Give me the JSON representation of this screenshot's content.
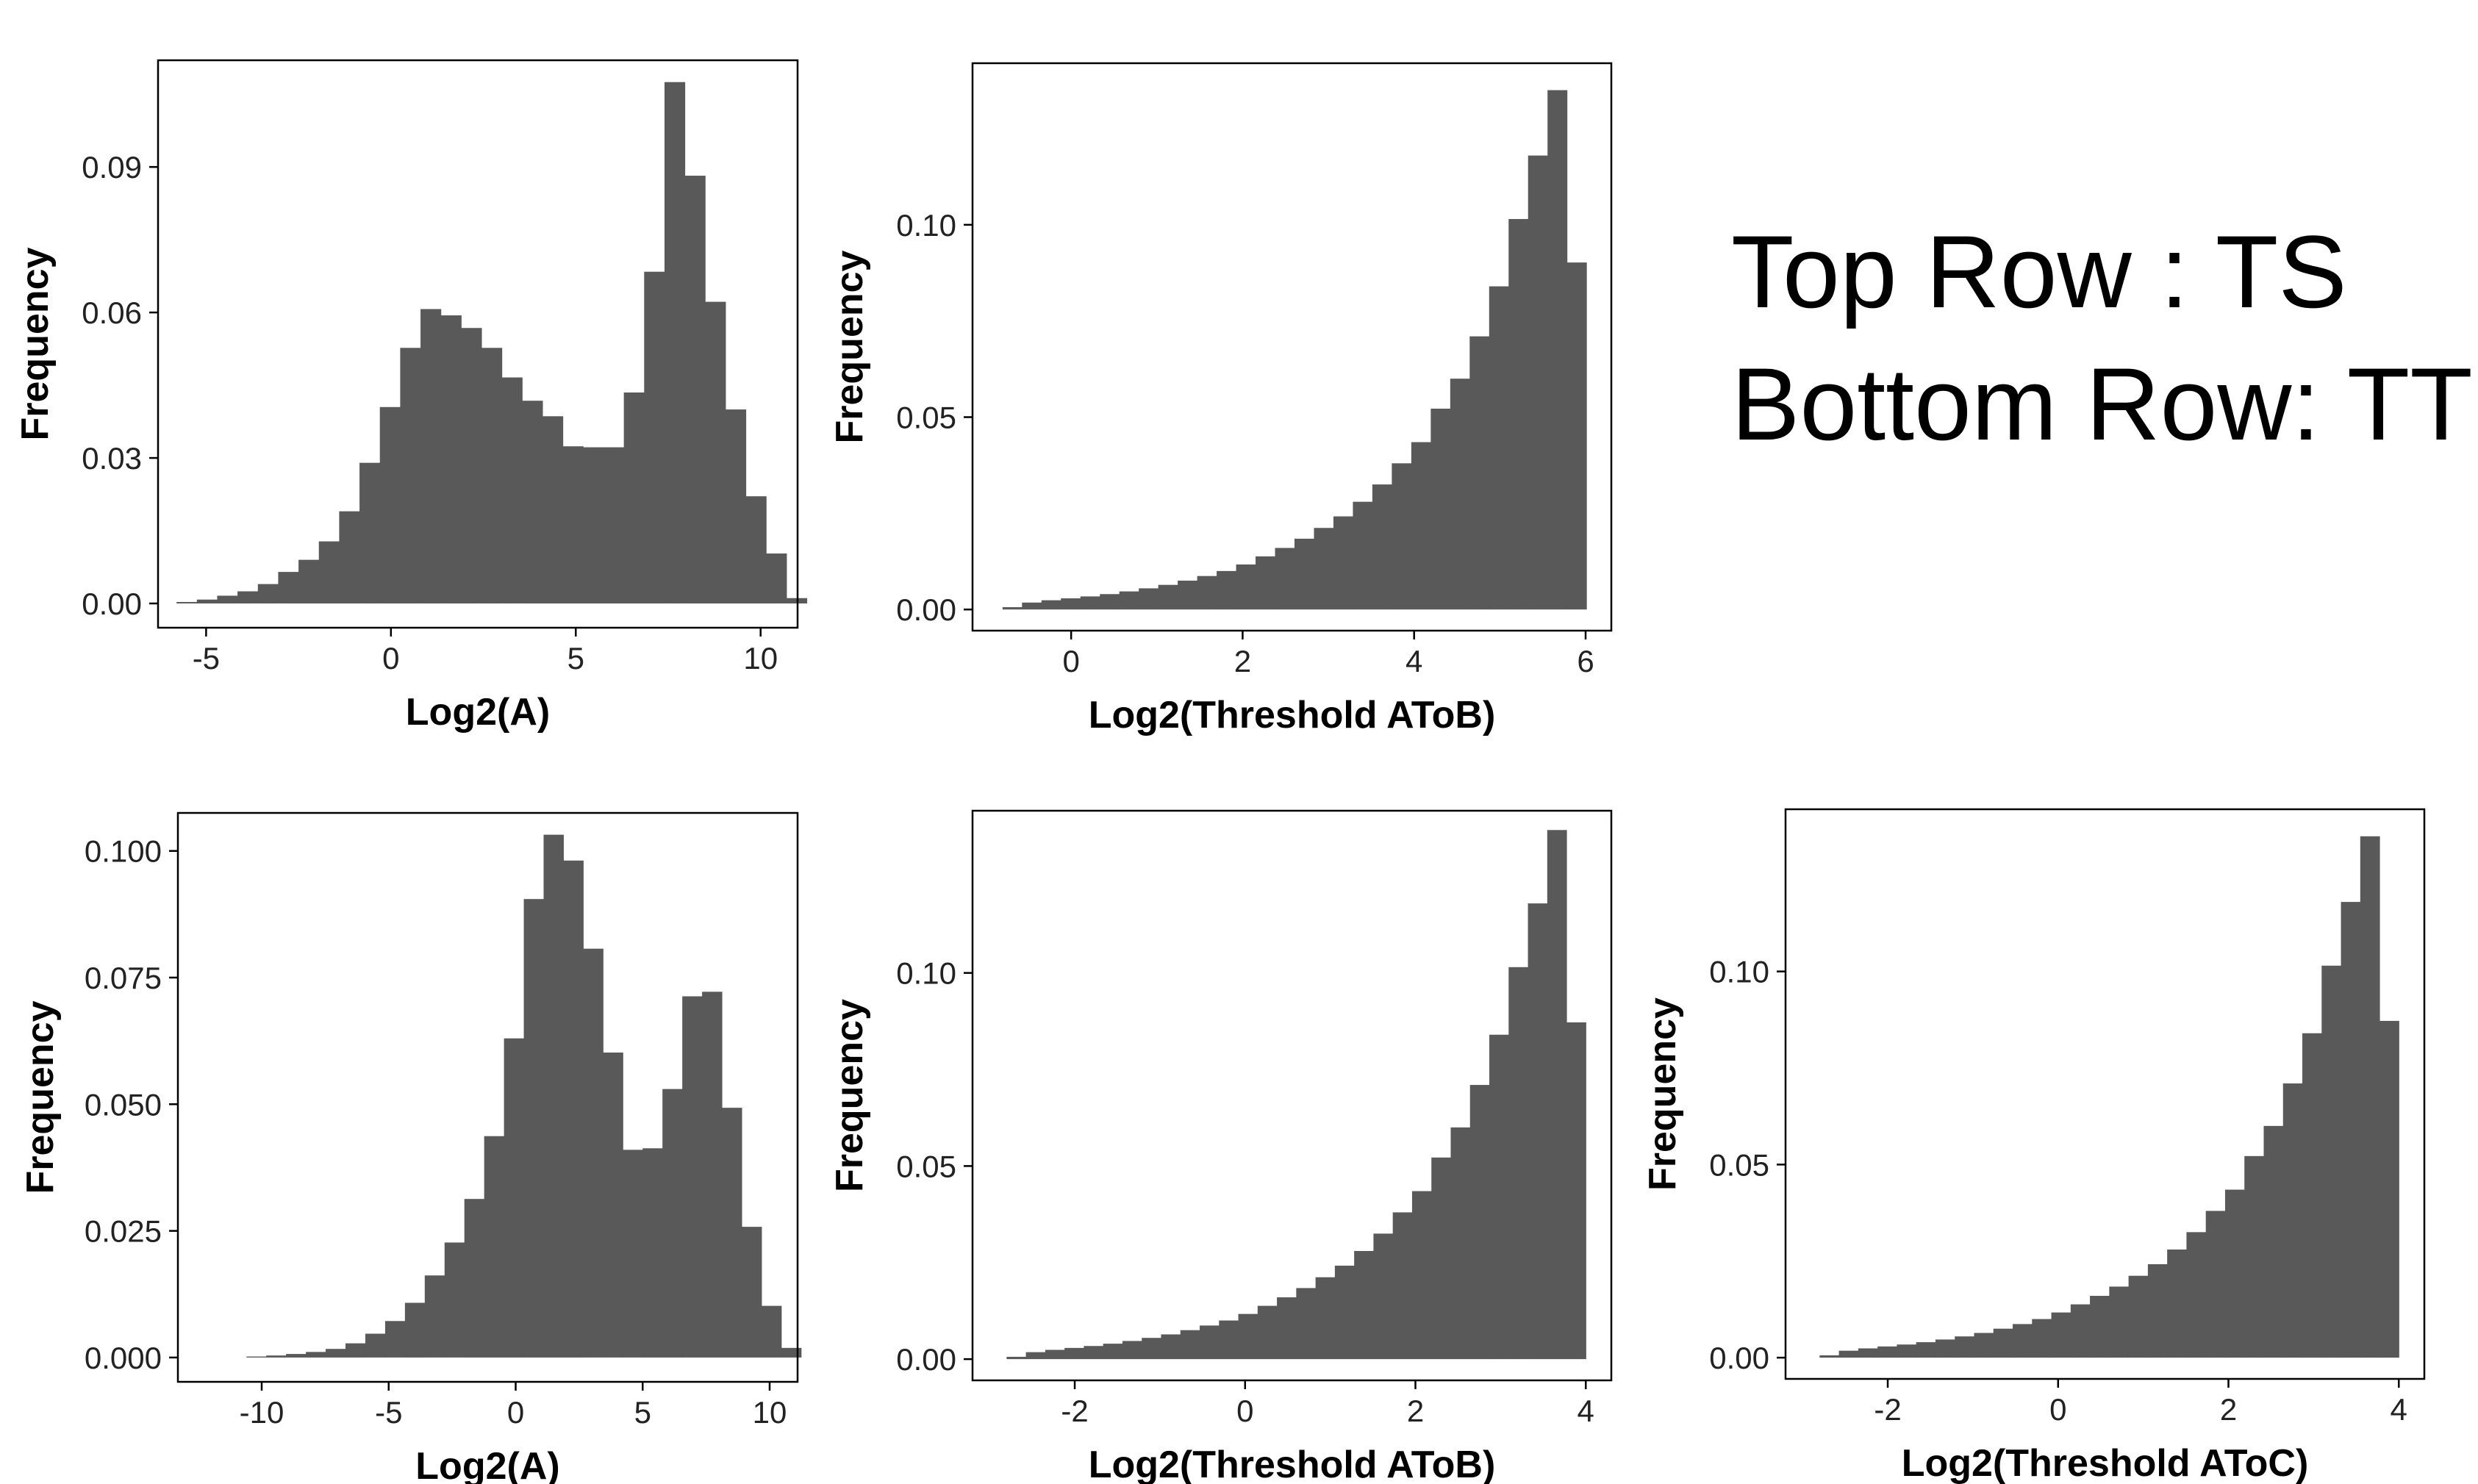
{
  "caption": {
    "line1": "Top Row : TS",
    "line2": "Bottom Row: TT"
  },
  "colors": {
    "bar": "#595959",
    "axis": "#000000",
    "background": "#ffffff"
  },
  "chart_data": [
    {
      "id": "ts-log2a",
      "type": "bar",
      "histogram": true,
      "xlabel": "Log2(A)",
      "ylabel": "Frequency",
      "grid": false,
      "xlim": [
        -6.3,
        11.0
      ],
      "ylim": [
        -0.005,
        0.112
      ],
      "xticks": [
        -5,
        0,
        5,
        10
      ],
      "xtick_labels": [
        "-5",
        "0",
        "5",
        "10"
      ],
      "yticks": [
        0.0,
        0.03,
        0.06,
        0.09
      ],
      "ytick_labels": [
        "0.00",
        "0.03",
        "0.06",
        "0.09"
      ],
      "bins": {
        "start": -5.8,
        "width": 0.55
      },
      "values": [
        0.0003,
        0.0008,
        0.0016,
        0.0025,
        0.004,
        0.0065,
        0.009,
        0.0128,
        0.019,
        0.029,
        0.0405,
        0.0527,
        0.0607,
        0.0594,
        0.0568,
        0.0527,
        0.0466,
        0.0418,
        0.0386,
        0.0324,
        0.0322,
        0.0322,
        0.0435,
        0.0684,
        0.1075,
        0.0882,
        0.0622,
        0.04,
        0.0221,
        0.0103,
        0.0011
      ]
    },
    {
      "id": "ts-threshold-atob",
      "type": "bar",
      "histogram": true,
      "xlabel": "Log2(Threshold AToB)",
      "ylabel": "Frequency",
      "grid": false,
      "xlim": [
        -1.15,
        6.3
      ],
      "ylim": [
        -0.0055,
        0.142
      ],
      "xticks": [
        0,
        2,
        4,
        6
      ],
      "xtick_labels": [
        "0",
        "2",
        "4",
        "6"
      ],
      "yticks": [
        0.0,
        0.05,
        0.1
      ],
      "ytick_labels": [
        "0.00",
        "0.05",
        "0.10"
      ],
      "bins": {
        "start": -0.8,
        "width": 0.227
      },
      "values": [
        0.0006,
        0.0018,
        0.0024,
        0.0029,
        0.0034,
        0.004,
        0.0047,
        0.0055,
        0.0064,
        0.0075,
        0.0087,
        0.01,
        0.0117,
        0.0138,
        0.016,
        0.0184,
        0.0212,
        0.0242,
        0.028,
        0.0325,
        0.038,
        0.0435,
        0.0522,
        0.06,
        0.071,
        0.084,
        0.1015,
        0.118,
        0.135,
        0.0902
      ]
    },
    {
      "id": "tt-log2a",
      "type": "bar",
      "histogram": true,
      "xlabel": "Log2(A)",
      "ylabel": "Frequency",
      "grid": false,
      "xlim": [
        -13.3,
        11.1
      ],
      "ylim": [
        -0.0048,
        0.1075
      ],
      "xticks": [
        -10,
        -5,
        0,
        5,
        10
      ],
      "xtick_labels": [
        "-10",
        "-5",
        "0",
        "5",
        "10"
      ],
      "yticks": [
        0.0,
        0.025,
        0.05,
        0.075,
        0.1
      ],
      "ytick_labels": [
        "0.000",
        "0.025",
        "0.050",
        "0.075",
        "0.100"
      ],
      "bins": {
        "start": -10.6,
        "width": 0.78
      },
      "values": [
        0.0002,
        0.0004,
        0.0007,
        0.0011,
        0.0017,
        0.0028,
        0.0047,
        0.0072,
        0.0108,
        0.0162,
        0.0227,
        0.0313,
        0.0437,
        0.063,
        0.0905,
        0.1032,
        0.0981,
        0.0807,
        0.0602,
        0.041,
        0.0413,
        0.053,
        0.0713,
        0.0722,
        0.0493,
        0.0258,
        0.0102,
        0.0019
      ]
    },
    {
      "id": "tt-threshold-atob",
      "type": "bar",
      "histogram": true,
      "xlabel": "Log2(Threshold AToB)",
      "ylabel": "Frequency",
      "grid": false,
      "xlim": [
        -3.2,
        4.3
      ],
      "ylim": [
        -0.0055,
        0.142
      ],
      "xticks": [
        -2,
        0,
        2,
        4
      ],
      "xtick_labels": [
        "-2",
        "0",
        "2",
        "4"
      ],
      "yticks": [
        0.0,
        0.05,
        0.1
      ],
      "ytick_labels": [
        "0.00",
        "0.05",
        "0.10"
      ],
      "bins": {
        "start": -2.8,
        "width": 0.2267
      },
      "values": [
        0.0006,
        0.0018,
        0.0024,
        0.0029,
        0.0034,
        0.004,
        0.0047,
        0.0055,
        0.0064,
        0.0075,
        0.0087,
        0.01,
        0.0117,
        0.0138,
        0.016,
        0.0184,
        0.0212,
        0.0242,
        0.028,
        0.0325,
        0.038,
        0.0435,
        0.0522,
        0.06,
        0.071,
        0.084,
        0.1015,
        0.118,
        0.137,
        0.0872
      ]
    },
    {
      "id": "tt-threshold-atoc",
      "type": "bar",
      "histogram": true,
      "xlabel": "Log2(Threshold AToC)",
      "ylabel": "Frequency",
      "grid": false,
      "xlim": [
        -3.2,
        4.3
      ],
      "ylim": [
        -0.0055,
        0.142
      ],
      "xticks": [
        -2,
        0,
        2,
        4
      ],
      "xtick_labels": [
        "-2",
        "0",
        "2",
        "4"
      ],
      "yticks": [
        0.0,
        0.05,
        0.1
      ],
      "ytick_labels": [
        "0.00",
        "0.05",
        "0.10"
      ],
      "bins": {
        "start": -2.8,
        "width": 0.2267
      },
      "values": [
        0.0006,
        0.0018,
        0.0024,
        0.0029,
        0.0034,
        0.004,
        0.0047,
        0.0055,
        0.0064,
        0.0075,
        0.0087,
        0.01,
        0.0117,
        0.0138,
        0.016,
        0.0184,
        0.0212,
        0.0242,
        0.028,
        0.0325,
        0.038,
        0.0435,
        0.0522,
        0.06,
        0.071,
        0.084,
        0.1015,
        0.118,
        0.135,
        0.0872
      ]
    }
  ]
}
